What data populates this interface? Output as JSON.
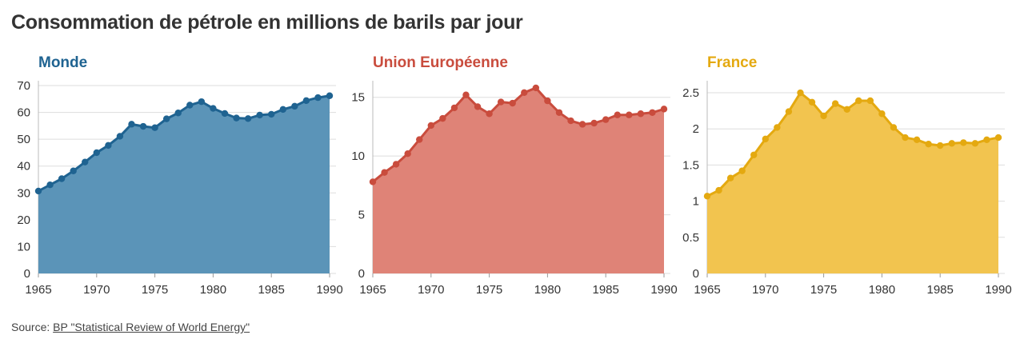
{
  "header": {
    "title": "Consommation de pétrole en millions de barils par jour"
  },
  "source": {
    "prefix": "Source: ",
    "link_text": "BP \"Statistical Review of World Energy\""
  },
  "chart_data": [
    {
      "type": "area",
      "title": "Monde",
      "color": "#1f6391",
      "fill": "#5b94b8",
      "x": [
        1965,
        1966,
        1967,
        1968,
        1969,
        1970,
        1971,
        1972,
        1973,
        1974,
        1975,
        1976,
        1977,
        1978,
        1979,
        1980,
        1981,
        1982,
        1983,
        1984,
        1985,
        1986,
        1987,
        1988,
        1989,
        1990
      ],
      "values": [
        30.7,
        33.0,
        35.3,
        38.2,
        41.5,
        45.0,
        47.7,
        51.1,
        55.6,
        54.8,
        54.3,
        57.6,
        59.8,
        62.7,
        64.0,
        61.5,
        59.6,
        57.9,
        57.7,
        59.0,
        59.3,
        61.1,
        62.3,
        64.4,
        65.5,
        66.2
      ],
      "ylim": [
        0,
        70
      ],
      "yticks": [
        0,
        10,
        20,
        30,
        40,
        50,
        60,
        70
      ],
      "xticks": [
        1965,
        1970,
        1975,
        1980,
        1985,
        1990
      ],
      "grid": true
    },
    {
      "type": "area",
      "title": "Union Européenne",
      "color": "#c94c3d",
      "fill": "#df8377",
      "x": [
        1965,
        1966,
        1967,
        1968,
        1969,
        1970,
        1971,
        1972,
        1973,
        1974,
        1975,
        1976,
        1977,
        1978,
        1979,
        1980,
        1981,
        1982,
        1983,
        1984,
        1985,
        1986,
        1987,
        1988,
        1989,
        1990
      ],
      "values": [
        7.8,
        8.6,
        9.3,
        10.2,
        11.4,
        12.6,
        13.2,
        14.1,
        15.2,
        14.2,
        13.6,
        14.6,
        14.5,
        15.4,
        15.8,
        14.7,
        13.7,
        13.0,
        12.7,
        12.8,
        13.1,
        13.5,
        13.5,
        13.6,
        13.7,
        14.0
      ],
      "ylim": [
        0,
        16
      ],
      "yticks": [
        0,
        5,
        10,
        15
      ],
      "xticks": [
        1965,
        1970,
        1975,
        1980,
        1985,
        1990
      ],
      "grid": true
    },
    {
      "type": "area",
      "title": "France",
      "color": "#e4a910",
      "fill": "#f2c44f",
      "x": [
        1965,
        1966,
        1967,
        1968,
        1969,
        1970,
        1971,
        1972,
        1973,
        1974,
        1975,
        1976,
        1977,
        1978,
        1979,
        1980,
        1981,
        1982,
        1983,
        1984,
        1985,
        1986,
        1987,
        1988,
        1989,
        1990
      ],
      "values": [
        1.07,
        1.15,
        1.32,
        1.42,
        1.64,
        1.86,
        2.02,
        2.24,
        2.5,
        2.37,
        2.18,
        2.35,
        2.27,
        2.39,
        2.39,
        2.21,
        2.02,
        1.88,
        1.85,
        1.79,
        1.77,
        1.8,
        1.81,
        1.8,
        1.85,
        1.88
      ],
      "ylim": [
        0,
        2.6
      ],
      "yticks": [
        0,
        0.5,
        1,
        1.5,
        2,
        2.5
      ],
      "xticks": [
        1965,
        1970,
        1975,
        1980,
        1985,
        1990
      ],
      "grid": true
    }
  ]
}
